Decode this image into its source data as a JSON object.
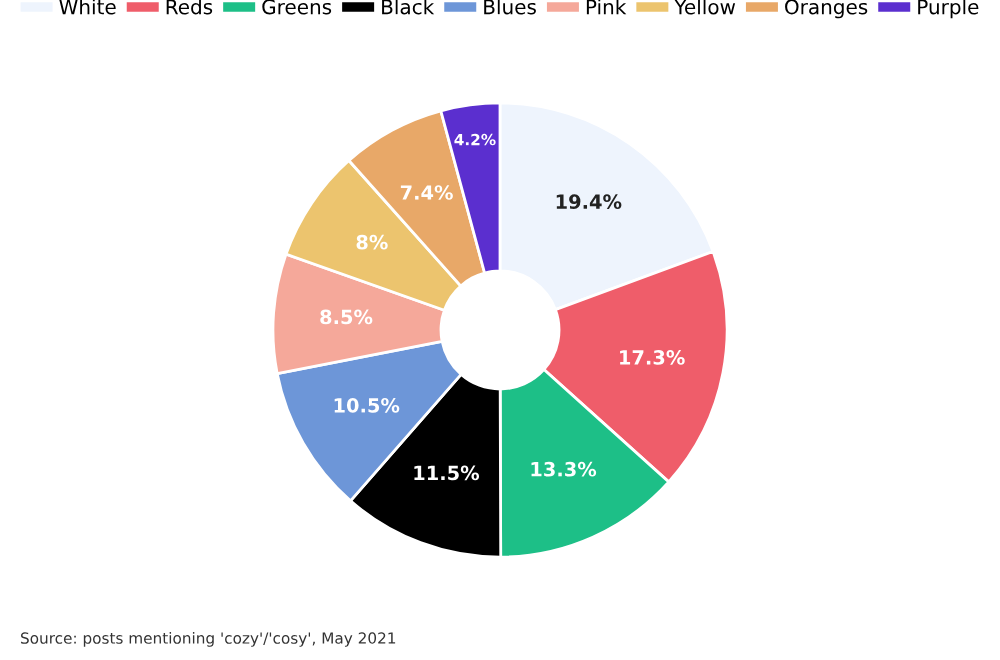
{
  "chart_data": {
    "type": "donut",
    "categories": [
      "White",
      "Reds",
      "Greens",
      "Black",
      "Blues",
      "Pink",
      "Yellow",
      "Oranges",
      "Purple"
    ],
    "values": [
      19.4,
      17.3,
      13.3,
      11.5,
      10.5,
      8.5,
      8,
      7.4,
      4.2
    ],
    "value_labels": [
      "19.4%",
      "17.3%",
      "13.3%",
      "11.5%",
      "10.5%",
      "8.5%",
      "8%",
      "7.4%",
      "4.2%"
    ],
    "colors": [
      "#eef4fd",
      "#ef5d6a",
      "#1dbf87",
      "#000000",
      "#6d96d8",
      "#f5a89a",
      "#ecc46e",
      "#e8a868",
      "#5b2fcf"
    ],
    "legend": "top",
    "annotations": [
      "Source: posts mentioning 'cozy'/'cosy', May 2021"
    ]
  }
}
